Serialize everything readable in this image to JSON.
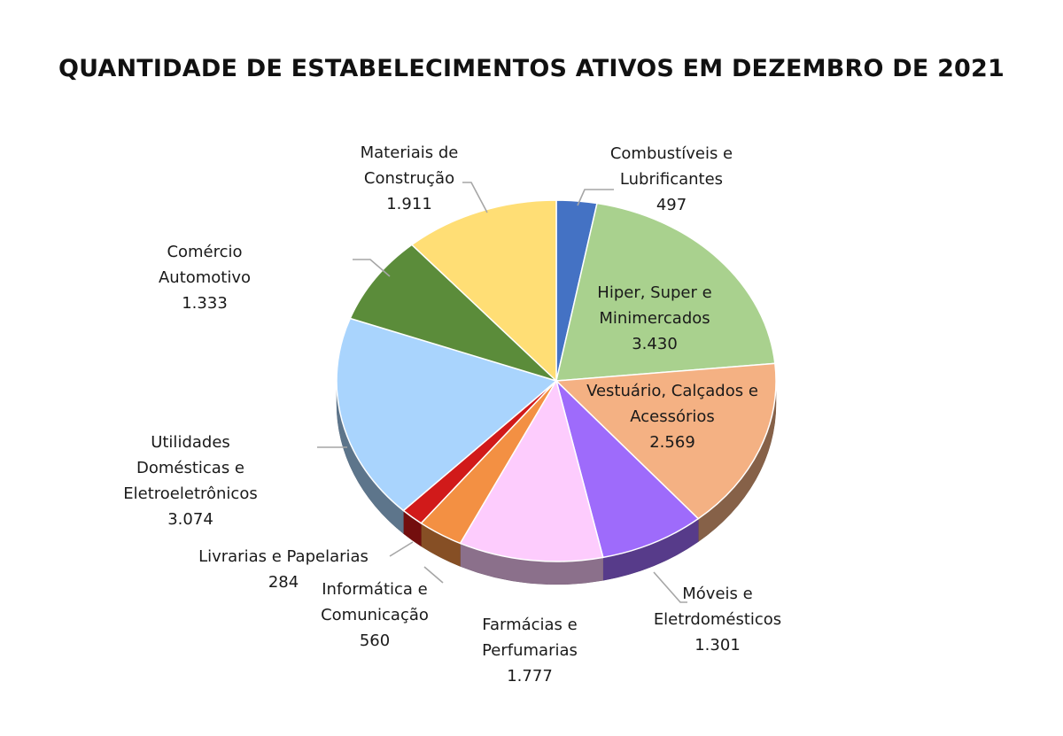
{
  "chart_data": {
    "type": "pie",
    "title": "QUANTIDADE DE ESTABELECIMENTOS ATIVOS EM DEZEMBRO DE 2021",
    "slices": [
      {
        "name": "Combustíveis e Lubrificantes",
        "label_lines": [
          "Combustíveis e",
          "Lubrificantes"
        ],
        "value": 497,
        "value_label": "497",
        "color": "#4472c4"
      },
      {
        "name": "Hiper, Super e Minimercados",
        "label_lines": [
          "Hiper, Super e",
          "Minimercados"
        ],
        "value": 3430,
        "value_label": "3.430",
        "color": "#a9d18e"
      },
      {
        "name": "Vestuário, Calçados e Acessórios",
        "label_lines": [
          "Vestuário, Calçados e",
          "Acessórios"
        ],
        "value": 2569,
        "value_label": "2.569",
        "color": "#f4b183"
      },
      {
        "name": "Móveis e Eletrdomésticos",
        "label_lines": [
          "Móveis e",
          "Eletrdomésticos"
        ],
        "value": 1301,
        "value_label": "1.301",
        "color": "#9e6bfb"
      },
      {
        "name": "Farmácias e Perfumarias",
        "label_lines": [
          "Farmácias e",
          "Perfumarias"
        ],
        "value": 1777,
        "value_label": "1.777",
        "color": "#fdccfd"
      },
      {
        "name": "Informática e Comunicação",
        "label_lines": [
          "Informática e",
          "Comunicação"
        ],
        "value": 560,
        "value_label": "560",
        "color": "#f39043"
      },
      {
        "name": "Livrarias e Papelarias",
        "label_lines": [
          "Livrarias e Papelarias"
        ],
        "value": 284,
        "value_label": "284",
        "color": "#d11a1a"
      },
      {
        "name": "Utilidades Domésticas e Eletroeletrônicos",
        "label_lines": [
          "Utilidades",
          "Domésticas e",
          "Eletroeletrônicos"
        ],
        "value": 3074,
        "value_label": "3.074",
        "color": "#a9d4fd"
      },
      {
        "name": "Comércio Automotivo",
        "label_lines": [
          "Comércio",
          "Automotivo"
        ],
        "value": 1333,
        "value_label": "1.333",
        "color": "#5b8c3a"
      },
      {
        "name": "Materiais de Construção",
        "label_lines": [
          "Materiais de",
          "Construção"
        ],
        "value": 1911,
        "value_label": "1.911",
        "color": "#ffde75"
      }
    ],
    "style": "3d-pie",
    "legend": "none"
  }
}
